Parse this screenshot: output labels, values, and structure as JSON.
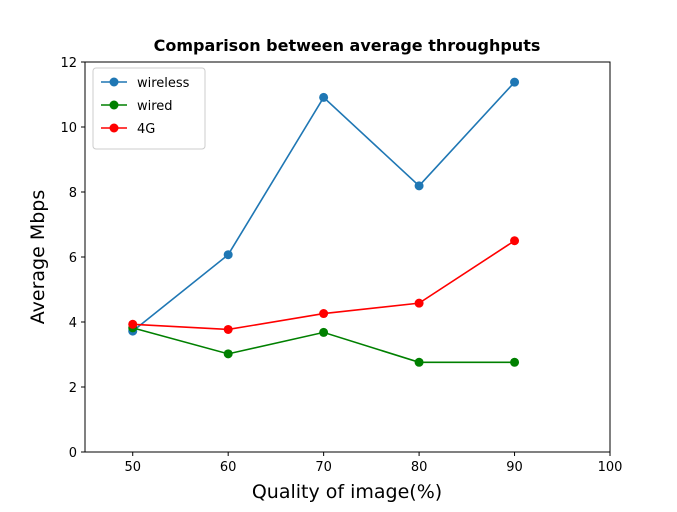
{
  "chart_data": {
    "type": "line",
    "title": "Comparison between average throughputs",
    "xlabel": "Quality of image(%)",
    "ylabel": "Average Mbps",
    "x": [
      50,
      60,
      70,
      80,
      90
    ],
    "xlim": [
      45,
      100
    ],
    "ylim": [
      0,
      12
    ],
    "xticks": [
      50,
      60,
      70,
      80,
      90,
      100
    ],
    "yticks": [
      0,
      2,
      4,
      6,
      8,
      10,
      12
    ],
    "grid": false,
    "legend_position": "top-left",
    "series": [
      {
        "name": "wireless",
        "color": "#1f77b4",
        "marker": "circle",
        "values": [
          3.72,
          6.07,
          10.91,
          8.19,
          11.38
        ]
      },
      {
        "name": "wired",
        "color": "#008000",
        "marker": "circle",
        "values": [
          3.82,
          3.02,
          3.68,
          2.76,
          2.76
        ]
      },
      {
        "name": "4G",
        "color": "#ff0000",
        "marker": "circle",
        "values": [
          3.93,
          3.77,
          4.26,
          4.58,
          6.5
        ]
      }
    ]
  }
}
